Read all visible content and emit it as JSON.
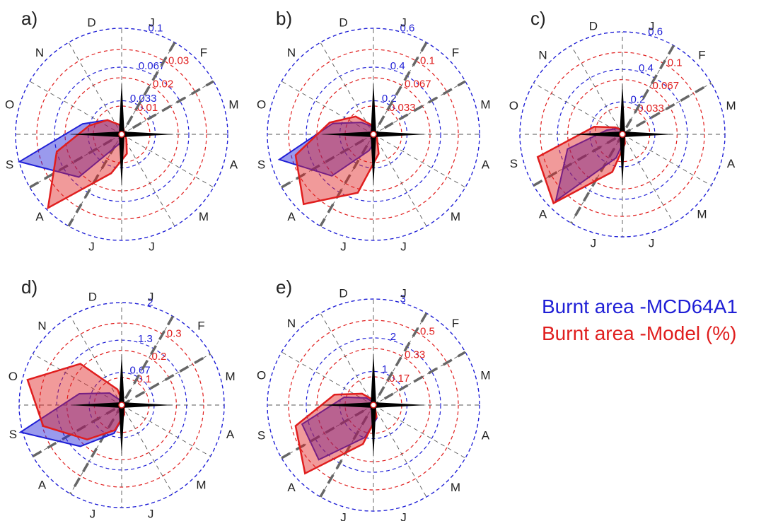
{
  "legend": [
    {
      "label": "Burnt area -MCD64A1",
      "color": "#1f1fd6"
    },
    {
      "label": "Burnt area -Model (%)",
      "color": "#e01e1e"
    }
  ],
  "colors": {
    "observed": "#1f1fd6",
    "model": "#e01e1e",
    "grid": "#555555",
    "axis_arm": "#000000"
  },
  "chart_data": [
    {
      "type": "radar",
      "panel": "a)",
      "months": [
        "J",
        "F",
        "M",
        "A",
        "M",
        "J",
        "J",
        "A",
        "S",
        "O",
        "N",
        "D"
      ],
      "observed_rings": [
        "0.033",
        "0.067",
        "0.1"
      ],
      "model_rings": [
        "0.01",
        "0.02",
        "0.03"
      ],
      "series": [
        {
          "name": "Burnt area -MCD64A1",
          "values": [
            0.003,
            0.001,
            0.001,
            0.001,
            0.002,
            0.005,
            0.01,
            0.06,
            0.105,
            0.04,
            0.02,
            0.01
          ]
        },
        {
          "name": "Burnt area -Model (%)",
          "values": [
            0.002,
            0.001,
            0.001,
            0.001,
            0.002,
            0.006,
            0.012,
            0.031,
            0.02,
            0.01,
            0.006,
            0.003
          ]
        }
      ]
    },
    {
      "type": "radar",
      "panel": "b)",
      "months": [
        "J",
        "F",
        "M",
        "A",
        "M",
        "J",
        "J",
        "A",
        "S",
        "O",
        "N",
        "D"
      ],
      "observed_rings": [
        "0.2",
        "0.4",
        "0.6"
      ],
      "model_rings": [
        "0.033",
        "0.067",
        "0.1"
      ],
      "series": [
        {
          "name": "Burnt area -MCD64A1",
          "values": [
            0.01,
            0.005,
            0.005,
            0.005,
            0.01,
            0.04,
            0.1,
            0.35,
            0.58,
            0.25,
            0.1,
            0.05
          ]
        },
        {
          "name": "Burnt area -Model (%)",
          "values": [
            0.005,
            0.002,
            0.002,
            0.002,
            0.005,
            0.02,
            0.06,
            0.098,
            0.08,
            0.045,
            0.025,
            0.01
          ]
        }
      ]
    },
    {
      "type": "radar",
      "panel": "c)",
      "months": [
        "J",
        "F",
        "M",
        "A",
        "M",
        "J",
        "J",
        "A",
        "S",
        "O",
        "N",
        "D"
      ],
      "observed_rings": [
        "0.2",
        "0.4",
        "0.6"
      ],
      "model_rings": [
        "0.033",
        "0.067",
        "0.1"
      ],
      "series": [
        {
          "name": "Burnt area -MCD64A1",
          "values": [
            0.02,
            0.01,
            0.005,
            0.005,
            0.01,
            0.04,
            0.15,
            0.58,
            0.35,
            0.1,
            0.05,
            0.03
          ]
        },
        {
          "name": "Burnt area -Model (%)",
          "values": [
            0.005,
            0.002,
            0.001,
            0.001,
            0.003,
            0.01,
            0.04,
            0.1,
            0.09,
            0.03,
            0.01,
            0.005
          ]
        }
      ]
    },
    {
      "type": "radar",
      "panel": "d)",
      "months": [
        "J",
        "F",
        "M",
        "A",
        "M",
        "J",
        "J",
        "A",
        "S",
        "O",
        "N",
        "D"
      ],
      "observed_rings": [
        "0.67",
        "1.3",
        "2"
      ],
      "model_rings": [
        "0.1",
        "0.2",
        "0.3"
      ],
      "series": [
        {
          "name": "Burnt area -MCD64A1",
          "values": [
            0.05,
            0.02,
            0.02,
            0.02,
            0.05,
            0.2,
            0.6,
            1.2,
            2.15,
            0.9,
            0.35,
            0.1
          ]
        },
        {
          "name": "Burnt area -Model (%)",
          "values": [
            0.01,
            0.005,
            0.005,
            0.005,
            0.01,
            0.03,
            0.08,
            0.15,
            0.25,
            0.3,
            0.18,
            0.05
          ]
        }
      ]
    },
    {
      "type": "radar",
      "panel": "e)",
      "months": [
        "J",
        "F",
        "M",
        "A",
        "M",
        "J",
        "J",
        "A",
        "S",
        "O",
        "N",
        "D"
      ],
      "observed_rings": [
        "1",
        "2",
        "3"
      ],
      "model_rings": [
        "0.17",
        "0.33",
        "0.5"
      ],
      "series": [
        {
          "name": "Burnt area -MCD64A1",
          "values": [
            0.05,
            0.02,
            0.02,
            0.02,
            0.05,
            0.4,
            1.0,
            2.3,
            2.2,
            0.9,
            0.3,
            0.1
          ]
        },
        {
          "name": "Burnt area -Model (%)",
          "values": [
            0.01,
            0.005,
            0.005,
            0.005,
            0.01,
            0.06,
            0.2,
            0.48,
            0.4,
            0.2,
            0.08,
            0.03
          ]
        }
      ]
    }
  ]
}
